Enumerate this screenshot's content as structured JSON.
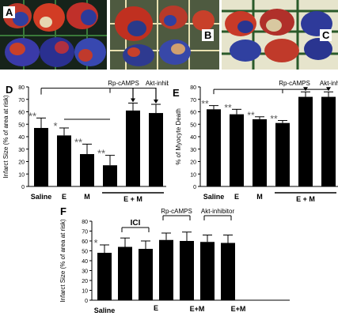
{
  "photos": [
    {
      "label": "A",
      "bg": "#1c2a20"
    },
    {
      "label": "B",
      "bg": "#5a6a4a"
    },
    {
      "label": "C",
      "bg": "#d9d9c8"
    }
  ],
  "colors": {
    "bar": "#000000",
    "axis": "#000000"
  },
  "chart_data": [
    {
      "type": "bar",
      "panel": "D",
      "ylabel": "Infarct Size (% of area at risk)",
      "ylim": [
        0,
        80
      ],
      "yticks": [
        0,
        10,
        20,
        30,
        40,
        50,
        60,
        70,
        80
      ],
      "categories": [
        "Saline",
        "E",
        "M",
        "",
        "",
        ""
      ],
      "group_label": "E + M",
      "values": [
        47,
        41,
        26,
        17,
        61,
        59
      ],
      "errors": [
        8,
        6,
        8,
        8,
        6,
        7
      ],
      "significance": [
        "**",
        "*",
        "**",
        "**",
        "",
        ""
      ],
      "annotations": [
        {
          "text": "Rp-cAMPS",
          "bar": 4
        },
        {
          "text": "Akt-inhibitor",
          "bar": 5
        }
      ]
    },
    {
      "type": "bar",
      "panel": "E",
      "ylabel": "% of Myocyte Death",
      "ylim": [
        0,
        80
      ],
      "yticks": [
        0,
        10,
        20,
        30,
        40,
        50,
        60,
        70,
        80
      ],
      "categories": [
        "Saline",
        "E",
        "M",
        "",
        "",
        ""
      ],
      "group_label": "E + M",
      "values": [
        62,
        58,
        54,
        51,
        72,
        72
      ],
      "errors": [
        3,
        4,
        2,
        2,
        4,
        4
      ],
      "significance": [
        "**",
        "**",
        "**",
        "**",
        "",
        ""
      ],
      "annotations": [
        {
          "text": "Rp-cAMPS",
          "bar": 4
        },
        {
          "text": "Akt-inhibitor",
          "bar": 5
        }
      ]
    },
    {
      "type": "bar",
      "panel": "F",
      "ylabel": "Infarct Size (% of area at risk)",
      "ylim": [
        0,
        80
      ],
      "yticks": [
        0,
        10,
        20,
        30,
        40,
        50,
        60,
        70,
        80
      ],
      "x_labels": [
        {
          "text": "Saline",
          "bar": 0
        },
        {
          "text": "E",
          "bar": 2.5
        },
        {
          "text": "E+M",
          "bar": 4.5
        },
        {
          "text": "E+M",
          "bar": 6.5
        }
      ],
      "values": [
        48,
        54,
        52,
        61,
        60,
        59,
        58
      ],
      "errors": [
        8,
        9,
        8,
        7,
        9,
        7,
        8
      ],
      "significance": [
        "*",
        "",
        "",
        "",
        "",
        "",
        ""
      ],
      "brackets": [
        {
          "text": "ICI",
          "from": 1,
          "to": 2,
          "bold": true
        },
        {
          "text": "Rp-cAMPS",
          "from": 3,
          "to": 4,
          "bold": false
        },
        {
          "text": "Akt-inhibitor",
          "from": 5,
          "to": 6,
          "bold": false
        }
      ]
    }
  ]
}
